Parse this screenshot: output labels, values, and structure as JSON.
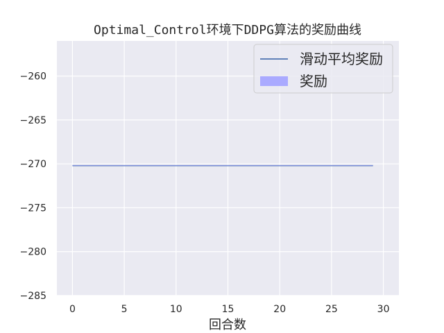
{
  "chart_data": {
    "type": "line",
    "title": "Optimal_Control环境下DDPG算法的奖励曲线",
    "xlabel": "回合数",
    "ylabel": "",
    "xlim": [
      -1.5,
      31.5
    ],
    "ylim": [
      -285,
      -256
    ],
    "xticks": [
      0,
      5,
      10,
      15,
      20,
      25,
      30
    ],
    "yticks": [
      -285,
      -280,
      -275,
      -270,
      -265,
      -260
    ],
    "grid": true,
    "legend_position": "upper right",
    "series": [
      {
        "name": "滑动平均奖励",
        "type": "line",
        "color": "#4c72b0",
        "x": [
          0,
          29
        ],
        "y": [
          -270.2,
          -270.2
        ]
      },
      {
        "name": "奖励",
        "type": "area",
        "color": "#aaaaff",
        "x": [
          0,
          29
        ],
        "y_low": [
          -270.2,
          -270.2
        ],
        "y_high": [
          -270.2,
          -270.2
        ]
      }
    ]
  }
}
